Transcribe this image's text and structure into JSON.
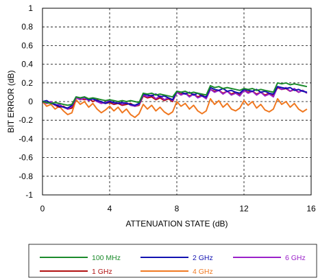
{
  "chart_data": {
    "type": "line",
    "title": "",
    "xlabel": "ATTENUATION STATE (dB)",
    "ylabel": "BIT ERROR (dB)",
    "xlim": [
      0,
      16
    ],
    "ylim": [
      -1,
      1
    ],
    "xticks": [
      0,
      4,
      8,
      12,
      16
    ],
    "xtick_labels": [
      "0",
      "4",
      "8",
      "12",
      "16"
    ],
    "yticks": [
      -1,
      -0.8,
      -0.6,
      -0.4,
      -0.2,
      0,
      0.2,
      0.4,
      0.6,
      0.8,
      1
    ],
    "ytick_labels": [
      "-1",
      "-0.8",
      "-0.6",
      "-0.4",
      "-0.2",
      "0",
      "0.2",
      "0.4",
      "0.6",
      "0.8",
      "1"
    ],
    "grid": true,
    "legend_position": "bottom",
    "x": [
      0,
      0.25,
      0.5,
      0.75,
      1,
      1.25,
      1.5,
      1.75,
      2,
      2.25,
      2.5,
      2.75,
      3,
      3.25,
      3.5,
      3.75,
      4,
      4.25,
      4.5,
      4.75,
      5,
      5.25,
      5.5,
      5.75,
      6,
      6.25,
      6.5,
      6.75,
      7,
      7.25,
      7.5,
      7.75,
      8,
      8.25,
      8.5,
      8.75,
      9,
      9.25,
      9.5,
      9.75,
      10,
      10.25,
      10.5,
      10.75,
      11,
      11.25,
      11.5,
      11.75,
      12,
      12.25,
      12.5,
      12.75,
      13,
      13.25,
      13.5,
      13.75,
      14,
      14.25,
      14.5,
      14.75,
      15,
      15.25,
      15.5,
      15.75
    ],
    "series": [
      {
        "name": "100 MHz",
        "color": "#1a8a2a",
        "values": [
          0.0,
          -0.01,
          -0.02,
          -0.01,
          -0.02,
          -0.03,
          -0.04,
          -0.03,
          0.05,
          0.04,
          0.05,
          0.03,
          0.04,
          0.03,
          0.02,
          0.01,
          0.02,
          0.01,
          0.0,
          0.01,
          0.0,
          0.01,
          0.0,
          -0.01,
          0.09,
          0.08,
          0.09,
          0.07,
          0.08,
          0.07,
          0.06,
          0.05,
          0.11,
          0.1,
          0.11,
          0.09,
          0.1,
          0.09,
          0.08,
          0.07,
          0.17,
          0.15,
          0.16,
          0.14,
          0.15,
          0.14,
          0.13,
          0.12,
          0.14,
          0.13,
          0.14,
          0.12,
          0.13,
          0.12,
          0.11,
          0.1,
          0.2,
          0.19,
          0.2,
          0.18,
          0.19,
          0.18,
          0.17,
          0.16
        ]
      },
      {
        "name": "1 GHz",
        "color": "#b01010",
        "values": [
          0.0,
          -0.02,
          -0.01,
          -0.04,
          -0.06,
          -0.05,
          -0.08,
          -0.07,
          0.04,
          0.03,
          0.02,
          0.03,
          0.0,
          0.02,
          -0.01,
          -0.02,
          -0.01,
          -0.03,
          -0.02,
          -0.04,
          -0.03,
          -0.02,
          -0.05,
          -0.04,
          0.06,
          0.04,
          0.05,
          0.02,
          0.04,
          0.01,
          0.03,
          0.0,
          0.1,
          0.08,
          0.09,
          0.06,
          0.08,
          0.05,
          0.07,
          0.04,
          0.13,
          0.11,
          0.12,
          0.09,
          0.11,
          0.08,
          0.1,
          0.07,
          0.12,
          0.1,
          0.11,
          0.08,
          0.1,
          0.07,
          0.09,
          0.06,
          0.15,
          0.13,
          0.14,
          0.11,
          0.13,
          0.1,
          0.12,
          0.09
        ]
      },
      {
        "name": "2 GHz",
        "color": "#1010b0",
        "values": [
          0.0,
          0.01,
          -0.02,
          -0.03,
          -0.05,
          -0.06,
          -0.07,
          -0.04,
          0.05,
          0.04,
          0.05,
          0.02,
          0.03,
          0.01,
          0.0,
          -0.02,
          0.0,
          -0.01,
          -0.02,
          -0.01,
          -0.02,
          -0.03,
          -0.04,
          -0.02,
          0.08,
          0.07,
          0.06,
          0.08,
          0.05,
          0.06,
          0.04,
          0.02,
          0.11,
          0.1,
          0.08,
          0.1,
          0.07,
          0.09,
          0.06,
          0.05,
          0.15,
          0.13,
          0.12,
          0.14,
          0.11,
          0.12,
          0.1,
          0.09,
          0.13,
          0.12,
          0.11,
          0.13,
          0.1,
          0.11,
          0.09,
          0.08,
          0.16,
          0.15,
          0.14,
          0.15,
          0.12,
          0.13,
          0.11,
          0.1
        ]
      },
      {
        "name": "4 GHz",
        "color": "#f07820",
        "values": [
          0.0,
          -0.05,
          -0.03,
          -0.08,
          -0.05,
          -0.1,
          -0.14,
          -0.12,
          0.02,
          -0.03,
          0.0,
          -0.06,
          -0.02,
          -0.08,
          -0.12,
          -0.09,
          -0.05,
          -0.1,
          -0.06,
          -0.12,
          -0.08,
          -0.14,
          -0.17,
          -0.13,
          -0.03,
          -0.08,
          -0.04,
          -0.1,
          -0.06,
          -0.11,
          -0.14,
          -0.11,
          0.0,
          -0.05,
          -0.02,
          -0.08,
          -0.04,
          -0.1,
          -0.13,
          -0.1,
          0.03,
          -0.03,
          0.01,
          -0.06,
          -0.02,
          -0.08,
          -0.1,
          -0.07,
          0.01,
          -0.04,
          0.0,
          -0.07,
          -0.03,
          -0.09,
          -0.11,
          -0.08,
          0.03,
          -0.03,
          0.0,
          -0.06,
          -0.02,
          -0.08,
          -0.11,
          -0.08
        ]
      },
      {
        "name": "6 GHz",
        "color": "#9a20c8",
        "values": [
          0.0,
          -0.02,
          0.0,
          -0.04,
          -0.03,
          -0.06,
          -0.08,
          -0.05,
          0.04,
          0.02,
          0.04,
          0.01,
          0.03,
          0.0,
          -0.02,
          -0.01,
          0.01,
          -0.02,
          0.0,
          -0.03,
          -0.01,
          -0.04,
          -0.05,
          -0.03,
          0.07,
          0.05,
          0.07,
          0.03,
          0.06,
          0.02,
          0.04,
          0.01,
          0.1,
          0.07,
          0.09,
          0.05,
          0.08,
          0.04,
          0.06,
          0.03,
          0.13,
          0.1,
          0.12,
          0.08,
          0.11,
          0.07,
          0.09,
          0.06,
          0.12,
          0.09,
          0.11,
          0.07,
          0.1,
          0.06,
          0.08,
          0.05,
          0.16,
          0.13,
          0.15,
          0.11,
          0.14,
          0.1,
          0.12,
          0.09
        ]
      }
    ],
    "legend_order": [
      "100 MHz",
      "2 GHz",
      "6 GHz",
      "1 GHz",
      "4 GHz"
    ]
  }
}
